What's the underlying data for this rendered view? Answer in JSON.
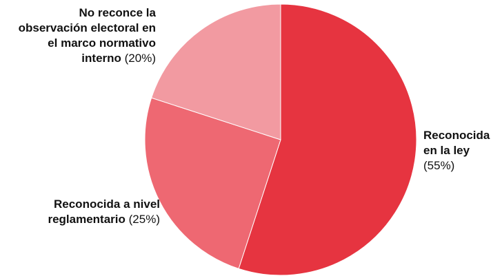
{
  "chart_data": {
    "type": "pie",
    "title": "",
    "slices": [
      {
        "label": "Reconocida en la ley",
        "pct_text": "(55%)",
        "value": 55,
        "color": "#e63440"
      },
      {
        "label": "Reconocida a nivel reglamentario",
        "pct_text": "(25%)",
        "value": 25,
        "color": "#ee6872"
      },
      {
        "label": "No reconce la observación electoral en el marco normativo interno",
        "pct_text": "(20%)",
        "value": 20,
        "color": "#f29aa1"
      }
    ]
  }
}
